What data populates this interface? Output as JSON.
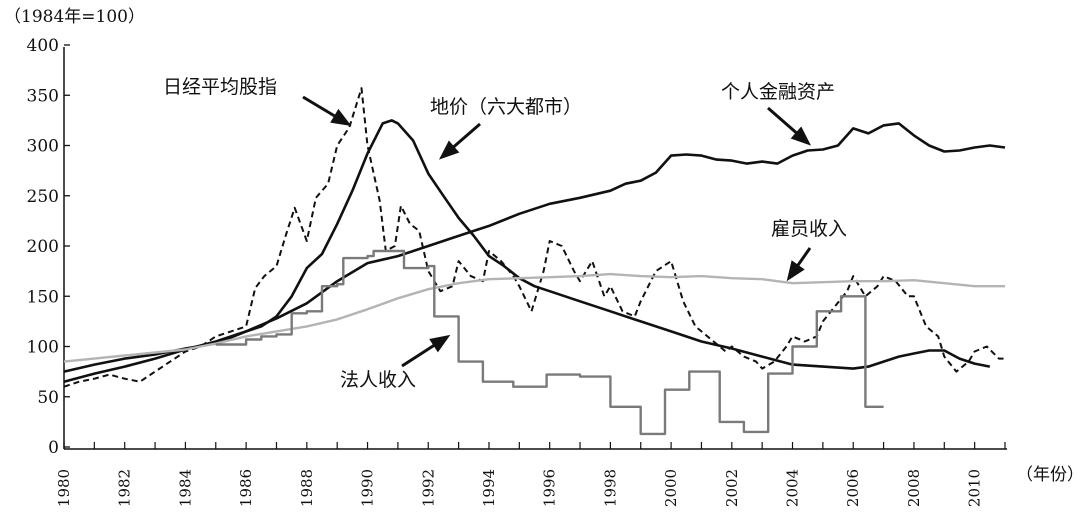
{
  "chart_data": {
    "type": "line",
    "unit_label": "（1984年=100）",
    "x_unit_label": "（年份）",
    "xlim": [
      1980,
      2011
    ],
    "ylim": [
      0,
      400
    ],
    "yticks": [
      0,
      50,
      100,
      150,
      200,
      250,
      300,
      350,
      400
    ],
    "xticks": [
      "1980",
      "1982",
      "1984",
      "1986",
      "1988",
      "1990",
      "1992",
      "1994",
      "1996",
      "1998",
      "2000",
      "2002",
      "2004",
      "2006",
      "2008",
      "2010"
    ],
    "grid": false,
    "legend": "none",
    "series": [
      {
        "name": "日经平均股指",
        "style": "dashed",
        "color": "#111111",
        "points": [
          [
            1980,
            60
          ],
          [
            1980.5,
            65
          ],
          [
            1981,
            68
          ],
          [
            1981.5,
            72
          ],
          [
            1982,
            68
          ],
          [
            1982.5,
            65
          ],
          [
            1983,
            75
          ],
          [
            1983.5,
            85
          ],
          [
            1984,
            95
          ],
          [
            1984.5,
            100
          ],
          [
            1985,
            110
          ],
          [
            1985.5,
            115
          ],
          [
            1986,
            120
          ],
          [
            1986.3,
            158
          ],
          [
            1986.6,
            170
          ],
          [
            1987,
            180
          ],
          [
            1987.3,
            210
          ],
          [
            1987.6,
            238
          ],
          [
            1988,
            205
          ],
          [
            1988.3,
            248
          ],
          [
            1988.7,
            262
          ],
          [
            1989,
            300
          ],
          [
            1989.4,
            318
          ],
          [
            1989.8,
            357
          ],
          [
            1990,
            300
          ],
          [
            1990.4,
            245
          ],
          [
            1990.6,
            195
          ],
          [
            1990.9,
            200
          ],
          [
            1991.1,
            240
          ],
          [
            1991.4,
            222
          ],
          [
            1991.7,
            215
          ],
          [
            1992,
            175
          ],
          [
            1992.4,
            155
          ],
          [
            1992.8,
            160
          ],
          [
            1993,
            185
          ],
          [
            1993.4,
            170
          ],
          [
            1993.8,
            165
          ],
          [
            1994,
            195
          ],
          [
            1994.4,
            185
          ],
          [
            1994.8,
            170
          ],
          [
            1995,
            160
          ],
          [
            1995.4,
            135
          ],
          [
            1995.8,
            175
          ],
          [
            1996,
            205
          ],
          [
            1996.4,
            200
          ],
          [
            1996.8,
            175
          ],
          [
            1997,
            165
          ],
          [
            1997.4,
            185
          ],
          [
            1997.8,
            150
          ],
          [
            1998,
            160
          ],
          [
            1998.4,
            135
          ],
          [
            1998.8,
            130
          ],
          [
            1999,
            145
          ],
          [
            1999.5,
            175
          ],
          [
            2000,
            185
          ],
          [
            2000.4,
            145
          ],
          [
            2000.8,
            120
          ],
          [
            2001,
            115
          ],
          [
            2001.4,
            105
          ],
          [
            2001.8,
            95
          ],
          [
            2002,
            100
          ],
          [
            2002.4,
            90
          ],
          [
            2002.8,
            85
          ],
          [
            2003,
            78
          ],
          [
            2003.4,
            85
          ],
          [
            2003.8,
            100
          ],
          [
            2004,
            110
          ],
          [
            2004.4,
            105
          ],
          [
            2004.8,
            110
          ],
          [
            2005,
            125
          ],
          [
            2005.4,
            140
          ],
          [
            2005.8,
            155
          ],
          [
            2006,
            170
          ],
          [
            2006.4,
            150
          ],
          [
            2006.8,
            160
          ],
          [
            2007,
            170
          ],
          [
            2007.4,
            165
          ],
          [
            2007.8,
            150
          ],
          [
            2008,
            150
          ],
          [
            2008.4,
            120
          ],
          [
            2008.8,
            110
          ],
          [
            2009,
            90
          ],
          [
            2009.4,
            75
          ],
          [
            2009.8,
            85
          ],
          [
            2010,
            95
          ],
          [
            2010.4,
            100
          ],
          [
            2010.8,
            88
          ],
          [
            2011,
            88
          ]
        ]
      },
      {
        "name": "地价（六大都市）",
        "style": "solid-bold",
        "color": "#111111",
        "points": [
          [
            1980,
            75
          ],
          [
            1981,
            82
          ],
          [
            1982,
            88
          ],
          [
            1983,
            92
          ],
          [
            1984,
            98
          ],
          [
            1985,
            103
          ],
          [
            1986,
            115
          ],
          [
            1986.5,
            120
          ],
          [
            1987,
            130
          ],
          [
            1987.5,
            150
          ],
          [
            1988,
            178
          ],
          [
            1988.5,
            192
          ],
          [
            1989,
            222
          ],
          [
            1989.5,
            255
          ],
          [
            1990,
            292
          ],
          [
            1990.5,
            322
          ],
          [
            1990.8,
            325
          ],
          [
            1991,
            322
          ],
          [
            1991.5,
            305
          ],
          [
            1992,
            272
          ],
          [
            1992.5,
            250
          ],
          [
            1993,
            228
          ],
          [
            1993.5,
            210
          ],
          [
            1994,
            190
          ],
          [
            1994.5,
            180
          ],
          [
            1995,
            168
          ],
          [
            1995.5,
            160
          ],
          [
            1996,
            155
          ],
          [
            1997,
            145
          ],
          [
            1998,
            135
          ],
          [
            1999,
            125
          ],
          [
            2000,
            115
          ],
          [
            2001,
            105
          ],
          [
            2002,
            98
          ],
          [
            2003,
            90
          ],
          [
            2004,
            82
          ],
          [
            2005,
            80
          ],
          [
            2006,
            78
          ],
          [
            2006.5,
            80
          ],
          [
            2007,
            85
          ],
          [
            2007.5,
            90
          ],
          [
            2008,
            93
          ],
          [
            2008.5,
            96
          ],
          [
            2009,
            96
          ],
          [
            2009.5,
            88
          ],
          [
            2010,
            83
          ],
          [
            2010.5,
            80
          ]
        ]
      },
      {
        "name": "个人金融资产",
        "style": "solid-bold",
        "color": "#111111",
        "points": [
          [
            1980,
            65
          ],
          [
            1981,
            73
          ],
          [
            1982,
            80
          ],
          [
            1983,
            88
          ],
          [
            1984,
            97
          ],
          [
            1985,
            105
          ],
          [
            1986,
            115
          ],
          [
            1987,
            128
          ],
          [
            1988,
            143
          ],
          [
            1989,
            165
          ],
          [
            1990,
            183
          ],
          [
            1991,
            190
          ],
          [
            1992,
            200
          ],
          [
            1993,
            210
          ],
          [
            1994,
            220
          ],
          [
            1995,
            232
          ],
          [
            1996,
            242
          ],
          [
            1997,
            248
          ],
          [
            1998,
            255
          ],
          [
            1998.5,
            262
          ],
          [
            1999,
            265
          ],
          [
            1999.5,
            273
          ],
          [
            2000,
            290
          ],
          [
            2000.5,
            291
          ],
          [
            2001,
            290
          ],
          [
            2001.5,
            286
          ],
          [
            2002,
            285
          ],
          [
            2002.5,
            282
          ],
          [
            2003,
            284
          ],
          [
            2003.5,
            282
          ],
          [
            2004,
            290
          ],
          [
            2004.5,
            295
          ],
          [
            2005,
            296
          ],
          [
            2005.5,
            300
          ],
          [
            2006,
            317
          ],
          [
            2006.5,
            312
          ],
          [
            2007,
            320
          ],
          [
            2007.5,
            322
          ],
          [
            2008,
            310
          ],
          [
            2008.5,
            300
          ],
          [
            2009,
            294
          ],
          [
            2009.5,
            295
          ],
          [
            2010,
            298
          ],
          [
            2010.5,
            300
          ],
          [
            2011,
            298
          ]
        ]
      },
      {
        "name": "雇员收入",
        "style": "solid",
        "color": "#b4b4b4",
        "points": [
          [
            1980,
            85
          ],
          [
            1981,
            88
          ],
          [
            1982,
            91
          ],
          [
            1983,
            94
          ],
          [
            1984,
            97
          ],
          [
            1985,
            103
          ],
          [
            1986,
            110
          ],
          [
            1987,
            115
          ],
          [
            1988,
            120
          ],
          [
            1989,
            127
          ],
          [
            1990,
            137
          ],
          [
            1991,
            148
          ],
          [
            1992,
            157
          ],
          [
            1993,
            163
          ],
          [
            1994,
            167
          ],
          [
            1995,
            168
          ],
          [
            1996,
            169
          ],
          [
            1997,
            170
          ],
          [
            1998,
            172
          ],
          [
            1999,
            170
          ],
          [
            2000,
            169
          ],
          [
            2001,
            170
          ],
          [
            2002,
            168
          ],
          [
            2003,
            167
          ],
          [
            2004,
            163
          ],
          [
            2005,
            164
          ],
          [
            2006,
            165
          ],
          [
            2007,
            165
          ],
          [
            2008,
            166
          ],
          [
            2009,
            163
          ],
          [
            2010,
            160
          ],
          [
            2011,
            160
          ]
        ]
      },
      {
        "name": "法人收入",
        "style": "step",
        "color": "#7a7a7a",
        "points": [
          [
            1985,
            102
          ],
          [
            1986,
            107
          ],
          [
            1986.5,
            110
          ],
          [
            1987,
            112
          ],
          [
            1987.5,
            133
          ],
          [
            1988,
            135
          ],
          [
            1988.5,
            160
          ],
          [
            1989,
            162
          ],
          [
            1989.2,
            188
          ],
          [
            1990,
            190
          ],
          [
            1990.2,
            195
          ],
          [
            1991,
            195
          ],
          [
            1991.2,
            178
          ],
          [
            1992,
            180
          ],
          [
            1992.2,
            130
          ],
          [
            1992.8,
            130
          ],
          [
            1993,
            85
          ],
          [
            1993.5,
            85
          ],
          [
            1993.8,
            65
          ],
          [
            1994.5,
            65
          ],
          [
            1994.8,
            60
          ],
          [
            1995.6,
            60
          ],
          [
            1995.9,
            72
          ],
          [
            1996.8,
            72
          ],
          [
            1997,
            70
          ],
          [
            1997.8,
            70
          ],
          [
            1998,
            40
          ],
          [
            1998.8,
            40
          ],
          [
            1999,
            13
          ],
          [
            1999.6,
            13
          ],
          [
            1999.8,
            57
          ],
          [
            2000.4,
            57
          ],
          [
            2000.6,
            75
          ],
          [
            2001.4,
            75
          ],
          [
            2001.6,
            25
          ],
          [
            2002.2,
            25
          ],
          [
            2002.4,
            15
          ],
          [
            2003,
            15
          ],
          [
            2003.2,
            73
          ],
          [
            2003.8,
            73
          ],
          [
            2004,
            100
          ],
          [
            2004.6,
            100
          ],
          [
            2004.8,
            135
          ],
          [
            2005.4,
            135
          ],
          [
            2005.6,
            150
          ],
          [
            2006.2,
            150
          ],
          [
            2006.4,
            40
          ],
          [
            2007,
            40
          ]
        ]
      }
    ],
    "annotations": [
      {
        "text": "日经平均股指",
        "target": [
          1989.6,
          322
        ]
      },
      {
        "text": "地价（六大都市）",
        "target": [
          1992.0,
          287
        ]
      },
      {
        "text": "个人金融资产",
        "target": [
          2004.6,
          304
        ]
      },
      {
        "text": "雇员收入",
        "target": [
          2003.9,
          168
        ]
      },
      {
        "text": "法人收入",
        "target": [
          1992.6,
          110
        ]
      }
    ]
  }
}
